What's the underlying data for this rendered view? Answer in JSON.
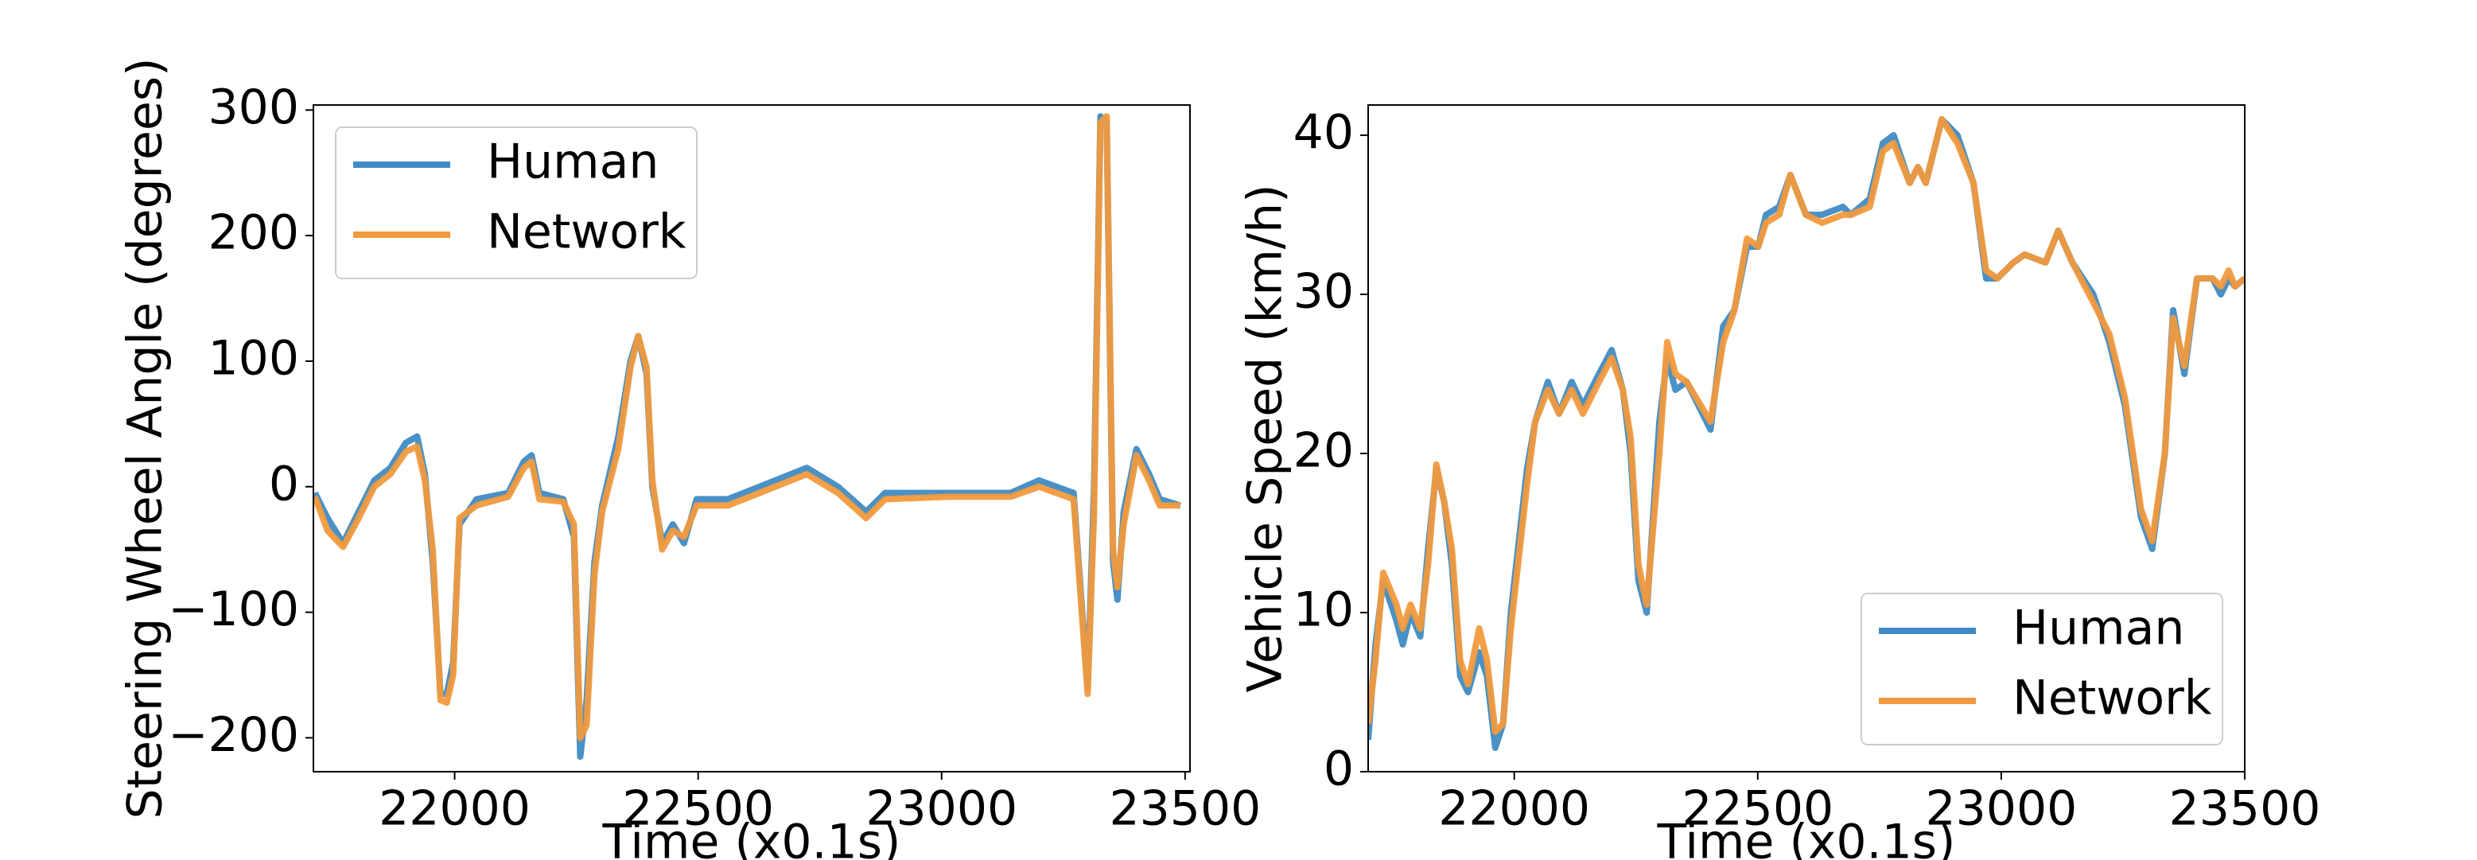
{
  "chart_data": [
    {
      "type": "line",
      "xlabel": "Time (x0.1s)",
      "ylabel": "Steering Wheel Angle (degrees)",
      "x": [
        21713,
        21739,
        21771,
        21803,
        21835,
        21868,
        21900,
        21923,
        21939,
        21955,
        21971,
        21984,
        21997,
        22010,
        22045,
        22110,
        22142,
        22158,
        22174,
        22223,
        22245,
        22258,
        22271,
        22287,
        22303,
        22336,
        22361,
        22377,
        22394,
        22406,
        22426,
        22448,
        22471,
        22497,
        22561,
        22626,
        22723,
        22787,
        22845,
        22884,
        23013,
        23142,
        23200,
        23271,
        23300,
        23313,
        23326,
        23339,
        23352,
        23361,
        23374,
        23400,
        23426,
        23448,
        23490
      ],
      "series": [
        {
          "name": "Human",
          "color": "#3f8bc3",
          "values": [
            -5,
            -25,
            -45,
            -20,
            5,
            15,
            35,
            40,
            10,
            -60,
            -165,
            -165,
            -140,
            -30,
            -10,
            -5,
            20,
            25,
            -5,
            -10,
            -40,
            -215,
            -170,
            -60,
            -15,
            40,
            100,
            120,
            90,
            0,
            -45,
            -30,
            -45,
            -10,
            -10,
            0,
            15,
            0,
            -20,
            -5,
            -5,
            -5,
            5,
            -5,
            -160,
            0,
            295,
            290,
            -60,
            -90,
            -20,
            30,
            10,
            -10,
            -15
          ]
        },
        {
          "name": "Network",
          "color": "#f19a3e",
          "values": [
            -8,
            -35,
            -48,
            -25,
            0,
            10,
            28,
            32,
            5,
            -50,
            -170,
            -172,
            -150,
            -25,
            -15,
            -8,
            15,
            20,
            -10,
            -12,
            -30,
            -200,
            -190,
            -70,
            -20,
            30,
            95,
            120,
            95,
            5,
            -50,
            -35,
            -40,
            -15,
            -15,
            -5,
            10,
            -5,
            -25,
            -10,
            -8,
            -8,
            0,
            -10,
            -165,
            -20,
            290,
            295,
            -50,
            -80,
            -30,
            25,
            5,
            -15,
            -15
          ]
        }
      ],
      "xlim": [
        21710,
        23510
      ],
      "xticks": [
        22000,
        22500,
        23000,
        23500
      ],
      "ylim": [
        -227,
        304
      ],
      "yticks": [
        {
          "value": -200,
          "label": "−200"
        },
        {
          "value": -100,
          "label": "−100"
        },
        0,
        100,
        200,
        300
      ],
      "legend": "upper left"
    },
    {
      "type": "line",
      "xlabel": "Time (x0.1s)",
      "ylabel": "Vehicle Speed (km/h)",
      "x": [
        21700,
        21715,
        21731,
        21758,
        21771,
        21787,
        21807,
        21823,
        21840,
        21856,
        21872,
        21889,
        21905,
        21928,
        21944,
        21961,
        21977,
        21993,
        22026,
        22043,
        22069,
        22092,
        22118,
        22141,
        22174,
        22200,
        22223,
        22239,
        22255,
        22272,
        22298,
        22314,
        22331,
        22354,
        22403,
        22429,
        22452,
        22478,
        22501,
        22517,
        22544,
        22567,
        22599,
        22632,
        22675,
        22691,
        22730,
        22757,
        22779,
        22812,
        22829,
        22845,
        22878,
        22910,
        22943,
        22969,
        22992,
        23025,
        23048,
        23091,
        23117,
        23146,
        23189,
        23222,
        23254,
        23287,
        23310,
        23336,
        23353,
        23376,
        23402,
        23434,
        23451,
        23467,
        23480,
        23500
      ],
      "series": [
        {
          "name": "Human",
          "color": "#3f8bc3",
          "values": [
            2,
            8,
            12,
            9.5,
            8,
            10,
            8.5,
            14,
            19,
            17,
            13,
            6,
            5,
            7.5,
            6,
            1.5,
            3,
            10,
            19,
            22,
            24.5,
            22.5,
            24.5,
            23,
            25,
            26.5,
            24,
            20,
            12,
            10,
            22,
            26,
            24,
            24.5,
            21.5,
            28,
            29,
            33,
            33,
            35,
            35.5,
            37.5,
            35,
            35,
            35.5,
            35,
            36,
            39.5,
            40,
            37,
            38,
            37,
            41,
            40,
            37,
            31,
            31,
            32,
            32.5,
            32,
            34,
            32,
            30,
            27,
            23,
            16,
            14,
            20,
            29,
            25,
            31,
            31,
            30,
            31,
            30.5,
            31
          ]
        },
        {
          "name": "Network",
          "color": "#f19a3e",
          "values": [
            3,
            7,
            12.5,
            10.5,
            9,
            10.5,
            9,
            13,
            19.3,
            17,
            14,
            7,
            5.5,
            9,
            7,
            2.5,
            3,
            9,
            18,
            22,
            24,
            22.5,
            24,
            22.5,
            24.5,
            26,
            24,
            21,
            13,
            10.5,
            20,
            27,
            25,
            24.5,
            22,
            27,
            29,
            33.5,
            33,
            34.5,
            35,
            37.5,
            35,
            34.5,
            35,
            35,
            35.5,
            39,
            39.5,
            37,
            38,
            37,
            41,
            39.5,
            37,
            31.5,
            31,
            32,
            32.5,
            32,
            34,
            32,
            29.5,
            27.5,
            23.5,
            16.5,
            14.5,
            20,
            28.5,
            25.5,
            31,
            31,
            30.5,
            31.5,
            30.5,
            31
          ]
        }
      ],
      "xlim": [
        21700,
        23500
      ],
      "xticks": [
        22000,
        22500,
        23000,
        23500
      ],
      "ylim": [
        0,
        41.9
      ],
      "yticks": [
        0,
        10,
        20,
        30,
        40
      ],
      "legend": "lower right"
    }
  ]
}
